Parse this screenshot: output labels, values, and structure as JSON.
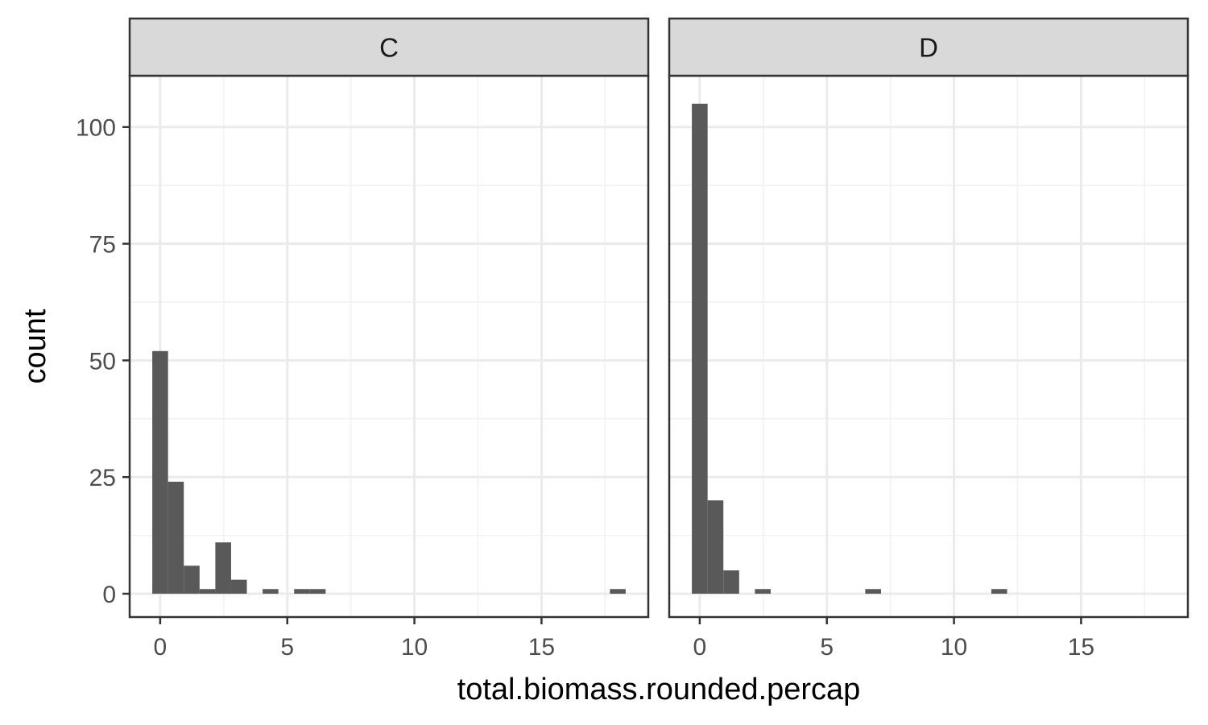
{
  "chart_data": {
    "type": "bar",
    "chart_kind": "histogram",
    "facet_layout": "1 row x 2 columns, shared y axis",
    "xlabel": "total.biomass.rounded.percap",
    "ylabel": "count",
    "xlim": [
      -1.2,
      19.2
    ],
    "ylim": [
      -5,
      111
    ],
    "x_ticks": [
      0,
      5,
      10,
      15
    ],
    "y_ticks": [
      0,
      25,
      50,
      75,
      100
    ],
    "bin_width": 0.62,
    "grid": true,
    "theme": "black-and-white",
    "colors": {
      "bar": "#595959",
      "grid_major": "#ebebeb",
      "grid_minor": "#f2f2f2",
      "strip_fill": "#d9d9d9",
      "panel_border": "#333333"
    },
    "panels": [
      {
        "strip": "C",
        "bins": [
          {
            "x": 0.0,
            "count": 52
          },
          {
            "x": 0.62,
            "count": 24
          },
          {
            "x": 1.24,
            "count": 6
          },
          {
            "x": 1.86,
            "count": 1
          },
          {
            "x": 2.48,
            "count": 11
          },
          {
            "x": 3.1,
            "count": 3
          },
          {
            "x": 4.34,
            "count": 1
          },
          {
            "x": 5.58,
            "count": 1
          },
          {
            "x": 6.2,
            "count": 1
          },
          {
            "x": 18.0,
            "count": 1
          }
        ]
      },
      {
        "strip": "D",
        "bins": [
          {
            "x": 0.0,
            "count": 105
          },
          {
            "x": 0.62,
            "count": 20
          },
          {
            "x": 1.24,
            "count": 5
          },
          {
            "x": 2.48,
            "count": 1
          },
          {
            "x": 6.82,
            "count": 1
          },
          {
            "x": 11.78,
            "count": 1
          }
        ]
      }
    ]
  }
}
